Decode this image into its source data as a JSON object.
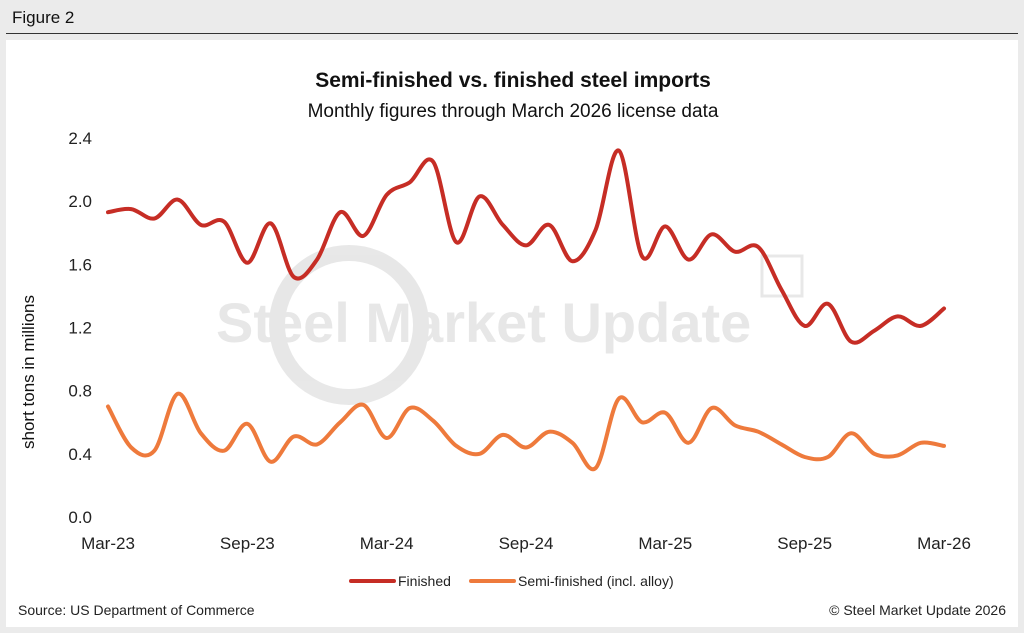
{
  "figure_label": "Figure 2",
  "footer": {
    "source": "Source: US Department of Commerce",
    "copyright": "© Steel Market Update 2026"
  },
  "watermark": "Steel Market Update",
  "colors": {
    "finished": "#c62d25",
    "semi_finished": "#ee7a3c"
  },
  "chart_data": {
    "type": "line",
    "title": "Semi-finished vs. finished steel imports",
    "subtitle": "Monthly figures through March 2026 license data",
    "ylabel": "short tons in millions",
    "xlabel": "",
    "ylim": [
      0.0,
      2.4
    ],
    "yticks": [
      "0.0",
      "0.4",
      "0.8",
      "1.2",
      "1.6",
      "2.0",
      "2.4"
    ],
    "xtick_labels": [
      "Mar-23",
      "Sep-23",
      "Mar-24",
      "Sep-24",
      "Mar-25",
      "Sep-25",
      "Mar-26"
    ],
    "xtick_index": [
      0,
      6,
      12,
      18,
      24,
      30,
      36
    ],
    "legend": [
      "Finished",
      "Semi-finished (incl. alloy)"
    ],
    "legend_position": "bottom-center",
    "series": [
      {
        "name": "Finished",
        "values": [
          1.93,
          1.95,
          1.89,
          2.01,
          1.85,
          1.87,
          1.61,
          1.86,
          1.52,
          1.63,
          1.93,
          1.78,
          2.04,
          2.12,
          2.25,
          1.74,
          2.03,
          1.85,
          1.72,
          1.85,
          1.62,
          1.82,
          2.32,
          1.65,
          1.84,
          1.63,
          1.79,
          1.68,
          1.71,
          1.44,
          1.21,
          1.35,
          1.11,
          1.18,
          1.27,
          1.21,
          1.32
        ]
      },
      {
        "name": "Semi-finished (incl. alloy)",
        "values": [
          0.7,
          0.44,
          0.42,
          0.78,
          0.53,
          0.42,
          0.59,
          0.35,
          0.51,
          0.46,
          0.6,
          0.71,
          0.5,
          0.69,
          0.61,
          0.45,
          0.4,
          0.52,
          0.44,
          0.54,
          0.47,
          0.31,
          0.75,
          0.6,
          0.66,
          0.47,
          0.69,
          0.58,
          0.54,
          0.46,
          0.38,
          0.38,
          0.53,
          0.4,
          0.39,
          0.47,
          0.45
        ]
      }
    ]
  }
}
